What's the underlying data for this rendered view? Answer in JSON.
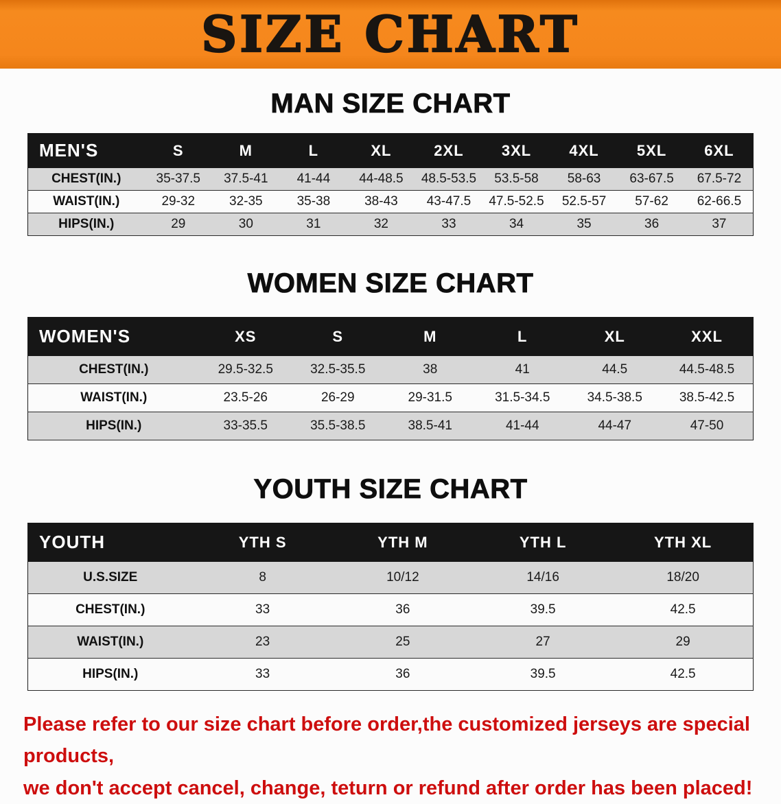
{
  "colors": {
    "banner_orange": "#f5861c",
    "table_header_black": "#161616",
    "row_stripe_gray": "#d7d7d7",
    "disclaimer_red": "#cd0e0e"
  },
  "banner": {
    "title": "SIZE CHART"
  },
  "sections": {
    "men": {
      "heading": "MAN SIZE CHART",
      "table": {
        "header": [
          "MEN'S",
          "S",
          "M",
          "L",
          "XL",
          "2XL",
          "3XL",
          "4XL",
          "5XL",
          "6XL"
        ],
        "rows": [
          [
            "CHEST(IN.)",
            "35-37.5",
            "37.5-41",
            "41-44",
            "44-48.5",
            "48.5-53.5",
            "53.5-58",
            "58-63",
            "63-67.5",
            "67.5-72"
          ],
          [
            "WAIST(IN.)",
            "29-32",
            "32-35",
            "35-38",
            "38-43",
            "43-47.5",
            "47.5-52.5",
            "52.5-57",
            "57-62",
            "62-66.5"
          ],
          [
            "HIPS(IN.)",
            "29",
            "30",
            "31",
            "32",
            "33",
            "34",
            "35",
            "36",
            "37"
          ]
        ]
      }
    },
    "women": {
      "heading": "WOMEN SIZE CHART",
      "table": {
        "header": [
          "WOMEN'S",
          "XS",
          "S",
          "M",
          "L",
          "XL",
          "XXL"
        ],
        "rows": [
          [
            "CHEST(IN.)",
            "29.5-32.5",
            "32.5-35.5",
            "38",
            "41",
            "44.5",
            "44.5-48.5"
          ],
          [
            "WAIST(IN.)",
            "23.5-26",
            "26-29",
            "29-31.5",
            "31.5-34.5",
            "34.5-38.5",
            "38.5-42.5"
          ],
          [
            "HIPS(IN.)",
            "33-35.5",
            "35.5-38.5",
            "38.5-41",
            "41-44",
            "44-47",
            "47-50"
          ]
        ]
      }
    },
    "youth": {
      "heading": "YOUTH SIZE CHART",
      "table": {
        "header": [
          "YOUTH",
          "YTH S",
          "YTH M",
          "YTH L",
          "YTH XL"
        ],
        "rows": [
          [
            "U.S.SIZE",
            "8",
            "10/12",
            "14/16",
            "18/20"
          ],
          [
            "CHEST(IN.)",
            "33",
            "36",
            "39.5",
            "42.5"
          ],
          [
            "WAIST(IN.)",
            "23",
            "25",
            "27",
            "29"
          ],
          [
            "HIPS(IN.)",
            "33",
            "36",
            "39.5",
            "42.5"
          ]
        ]
      }
    }
  },
  "disclaimer": {
    "line1": "Please refer to our size chart before order,the customized jerseys are special products,",
    "line2": "we don't accept cancel, change, teturn or refund after order has been placed!"
  }
}
